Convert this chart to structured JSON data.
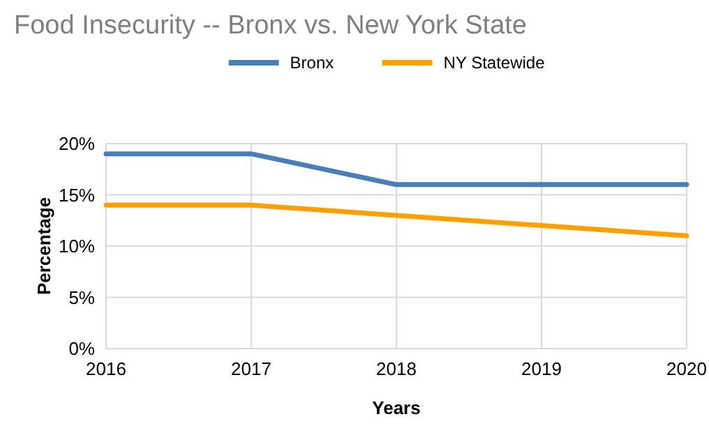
{
  "chart_data": {
    "type": "line",
    "title": "Food Insecurity -- Bronx vs. New York State",
    "xlabel": "Years",
    "ylabel": "Percentage",
    "x": [
      2016,
      2017,
      2018,
      2019,
      2020
    ],
    "series": [
      {
        "name": "Bronx",
        "color": "#4a7ebb",
        "values": [
          19,
          19,
          16,
          16,
          16
        ]
      },
      {
        "name": "NY Statewide",
        "color": "#ffa000",
        "values": [
          14,
          14,
          13,
          12,
          11
        ]
      }
    ],
    "xlim": [
      2016,
      2020
    ],
    "xticks": [
      2016,
      2017,
      2018,
      2019,
      2020
    ],
    "ylim": [
      0,
      20
    ],
    "yticks": [
      {
        "value": 0,
        "label": "0%"
      },
      {
        "value": 5,
        "label": "5%"
      },
      {
        "value": 10,
        "label": "10%"
      },
      {
        "value": 15,
        "label": "15%"
      },
      {
        "value": 20,
        "label": "20%"
      }
    ],
    "grid": true,
    "legend": "top",
    "marker": "none",
    "line_style": "solid"
  }
}
